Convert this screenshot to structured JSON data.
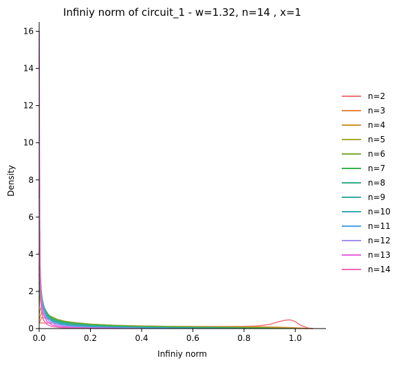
{
  "chart_data": {
    "type": "line",
    "title": "Infiniy norm of circuit_1 - w=1.32, n=14 , x=1",
    "xlabel": "Infiniy norm",
    "ylabel": "Density",
    "xlim": [
      0,
      1.12
    ],
    "ylim": [
      0,
      16.5
    ],
    "x_ticks": [
      0.0,
      0.2,
      0.4,
      0.6,
      0.8,
      1.0
    ],
    "x_tick_labels": [
      "0.0",
      "0.2",
      "0.4",
      "0.6",
      "0.8",
      "1.0"
    ],
    "y_ticks": [
      0,
      2,
      4,
      6,
      8,
      10,
      12,
      14,
      16
    ],
    "y_tick_labels": [
      "0",
      "2",
      "4",
      "6",
      "8",
      "10",
      "12",
      "14",
      "16"
    ],
    "grid": false,
    "legend_position": "right",
    "series": [
      {
        "name": "n=2",
        "color": "#f0737a",
        "x": [
          0.0,
          0.05,
          0.1,
          0.2,
          0.3,
          0.4,
          0.5,
          0.6,
          0.7,
          0.8,
          0.85,
          0.9,
          0.93,
          0.96,
          0.98,
          1.0,
          1.02,
          1.05,
          1.07
        ],
        "y": [
          0.3,
          0.3,
          0.25,
          0.2,
          0.16,
          0.13,
          0.11,
          0.11,
          0.11,
          0.12,
          0.14,
          0.22,
          0.35,
          0.45,
          0.47,
          0.38,
          0.18,
          0.03,
          0.0
        ]
      },
      {
        "name": "n=3",
        "color": "#e7863a",
        "x": [
          0.0,
          0.01,
          0.03,
          0.06,
          0.1,
          0.2,
          0.3,
          0.4,
          0.5,
          0.6,
          0.7,
          0.8,
          0.9,
          0.95,
          1.0,
          1.05,
          1.07
        ],
        "y": [
          0.3,
          0.6,
          0.55,
          0.4,
          0.32,
          0.22,
          0.17,
          0.14,
          0.12,
          0.11,
          0.1,
          0.1,
          0.09,
          0.07,
          0.04,
          0.01,
          0.0
        ]
      },
      {
        "name": "n=4",
        "color": "#c89530",
        "x": [
          0.0,
          0.01,
          0.03,
          0.06,
          0.1,
          0.2,
          0.3,
          0.4,
          0.5,
          0.6,
          0.7,
          0.8,
          0.9,
          1.0,
          1.05
        ],
        "y": [
          0.5,
          0.9,
          0.7,
          0.5,
          0.38,
          0.24,
          0.17,
          0.14,
          0.12,
          0.1,
          0.09,
          0.08,
          0.06,
          0.02,
          0.0
        ]
      },
      {
        "name": "n=5",
        "color": "#a6a62e",
        "x": [
          0.0,
          0.01,
          0.02,
          0.04,
          0.07,
          0.1,
          0.15,
          0.2,
          0.3,
          0.4,
          0.5,
          0.6,
          0.7,
          0.8,
          0.9,
          1.0
        ],
        "y": [
          0.8,
          1.3,
          1.0,
          0.7,
          0.5,
          0.4,
          0.3,
          0.24,
          0.17,
          0.13,
          0.11,
          0.09,
          0.08,
          0.06,
          0.04,
          0.01
        ]
      },
      {
        "name": "n=6",
        "color": "#7bab33",
        "x": [
          0.0,
          0.005,
          0.015,
          0.03,
          0.05,
          0.08,
          0.12,
          0.2,
          0.3,
          0.4,
          0.5,
          0.6,
          0.7,
          0.8,
          0.9,
          1.0
        ],
        "y": [
          1.2,
          1.8,
          1.3,
          0.8,
          0.55,
          0.42,
          0.32,
          0.22,
          0.16,
          0.12,
          0.1,
          0.08,
          0.07,
          0.05,
          0.03,
          0.01
        ]
      },
      {
        "name": "n=7",
        "color": "#34b34e",
        "x": [
          0.0,
          0.005,
          0.01,
          0.02,
          0.04,
          0.07,
          0.1,
          0.15,
          0.2,
          0.3,
          0.4,
          0.5,
          0.6,
          0.7,
          0.8,
          0.9
        ],
        "y": [
          1.6,
          2.2,
          1.7,
          1.1,
          0.65,
          0.45,
          0.36,
          0.27,
          0.21,
          0.14,
          0.1,
          0.08,
          0.06,
          0.05,
          0.03,
          0.02
        ]
      },
      {
        "name": "n=8",
        "color": "#33ad86",
        "x": [
          0.0,
          0.004,
          0.008,
          0.015,
          0.03,
          0.05,
          0.08,
          0.12,
          0.2,
          0.3,
          0.4,
          0.5,
          0.6,
          0.7,
          0.8
        ],
        "y": [
          2.0,
          2.6,
          2.0,
          1.3,
          0.75,
          0.5,
          0.36,
          0.26,
          0.17,
          0.11,
          0.08,
          0.06,
          0.05,
          0.03,
          0.02
        ]
      },
      {
        "name": "n=9",
        "color": "#35aaa0",
        "x": [
          0.0,
          0.003,
          0.006,
          0.012,
          0.025,
          0.04,
          0.06,
          0.1,
          0.15,
          0.2,
          0.3,
          0.4,
          0.5,
          0.6,
          0.7
        ],
        "y": [
          2.4,
          3.0,
          2.3,
          1.5,
          0.85,
          0.55,
          0.4,
          0.26,
          0.18,
          0.13,
          0.08,
          0.06,
          0.04,
          0.03,
          0.02
        ]
      },
      {
        "name": "n=10",
        "color": "#37a8b5",
        "x": [
          0.0,
          0.002,
          0.005,
          0.01,
          0.02,
          0.035,
          0.05,
          0.08,
          0.12,
          0.2,
          0.3,
          0.4,
          0.5,
          0.6
        ],
        "y": [
          2.8,
          3.4,
          2.6,
          1.7,
          0.95,
          0.58,
          0.42,
          0.28,
          0.18,
          0.1,
          0.06,
          0.04,
          0.03,
          0.02
        ]
      },
      {
        "name": "n=11",
        "color": "#4aa2ea",
        "x": [
          0.0,
          0.002,
          0.004,
          0.008,
          0.015,
          0.03,
          0.05,
          0.08,
          0.12,
          0.2,
          0.3,
          0.4,
          0.5
        ],
        "y": [
          3.2,
          3.8,
          2.9,
          1.9,
          1.1,
          0.6,
          0.38,
          0.24,
          0.15,
          0.08,
          0.05,
          0.03,
          0.02
        ]
      },
      {
        "name": "n=12",
        "color": "#a58ff0",
        "x": [
          0.0,
          0.0015,
          0.003,
          0.006,
          0.012,
          0.025,
          0.04,
          0.06,
          0.1,
          0.15,
          0.2,
          0.3,
          0.4
        ],
        "y": [
          4.0,
          4.8,
          3.5,
          2.2,
          1.2,
          0.6,
          0.38,
          0.24,
          0.13,
          0.08,
          0.05,
          0.03,
          0.02
        ]
      },
      {
        "name": "n=13",
        "color": "#e55fdc",
        "x": [
          0.0,
          0.001,
          0.002,
          0.004,
          0.008,
          0.015,
          0.03,
          0.05,
          0.08,
          0.12,
          0.2,
          0.3
        ],
        "y": [
          7.0,
          9.0,
          6.0,
          3.2,
          1.6,
          0.8,
          0.38,
          0.2,
          0.11,
          0.06,
          0.03,
          0.02
        ]
      },
      {
        "name": "n=14",
        "color": "#f067b0",
        "x": [
          0.0,
          0.0005,
          0.001,
          0.002,
          0.004,
          0.008,
          0.015,
          0.03,
          0.05,
          0.08,
          0.12,
          0.2
        ],
        "y": [
          14.0,
          16.0,
          11.0,
          5.5,
          2.5,
          1.1,
          0.5,
          0.22,
          0.11,
          0.06,
          0.03,
          0.01
        ]
      }
    ]
  }
}
